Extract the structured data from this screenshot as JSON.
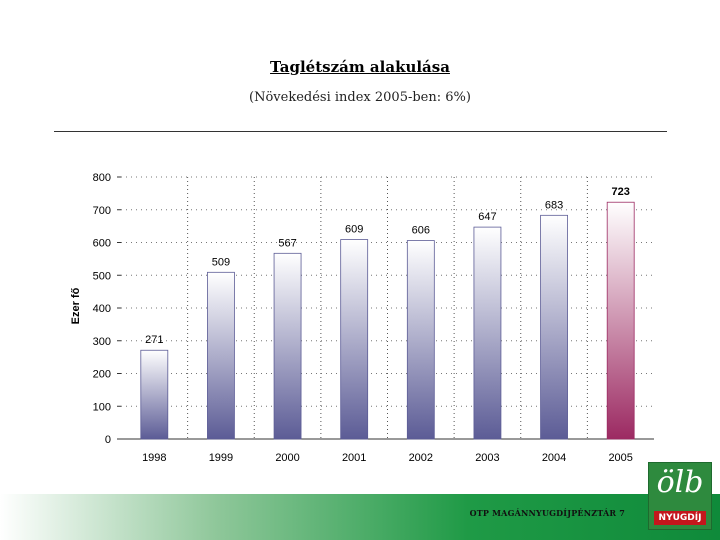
{
  "header": {
    "title": "Taglétszám alakulása",
    "subtitle": "(Növekedési index 2005-ben: 6%)"
  },
  "chart_data": {
    "type": "bar",
    "title": "Taglétszám alakulása",
    "subtitle": "(Növekedési index 2005-ben: 6%)",
    "xlabel": "",
    "ylabel": "Ezer fő",
    "categories": [
      "1998",
      "1999",
      "2000",
      "2001",
      "2002",
      "2003",
      "2004",
      "2005"
    ],
    "values": [
      271,
      509,
      567,
      609,
      606,
      647,
      683,
      723
    ],
    "value_labels": [
      "271",
      "509",
      "567",
      "609",
      "606",
      "647",
      "683",
      "723"
    ],
    "ylim": [
      0,
      800
    ],
    "yticks": [
      0,
      100,
      200,
      300,
      400,
      500,
      600,
      700,
      800
    ],
    "grid": "vertical dotted",
    "colors": {
      "bar_bottom": "#5c5c96",
      "bar_top": "#ffffff",
      "highlight_bottom": "#9c2a62"
    }
  },
  "footer": {
    "text": "OTP MAGÁNNYUGDÍJPÉNZTÁR 7",
    "logo_mark": "ölb",
    "logo_word": "NYUGDÍJ"
  }
}
